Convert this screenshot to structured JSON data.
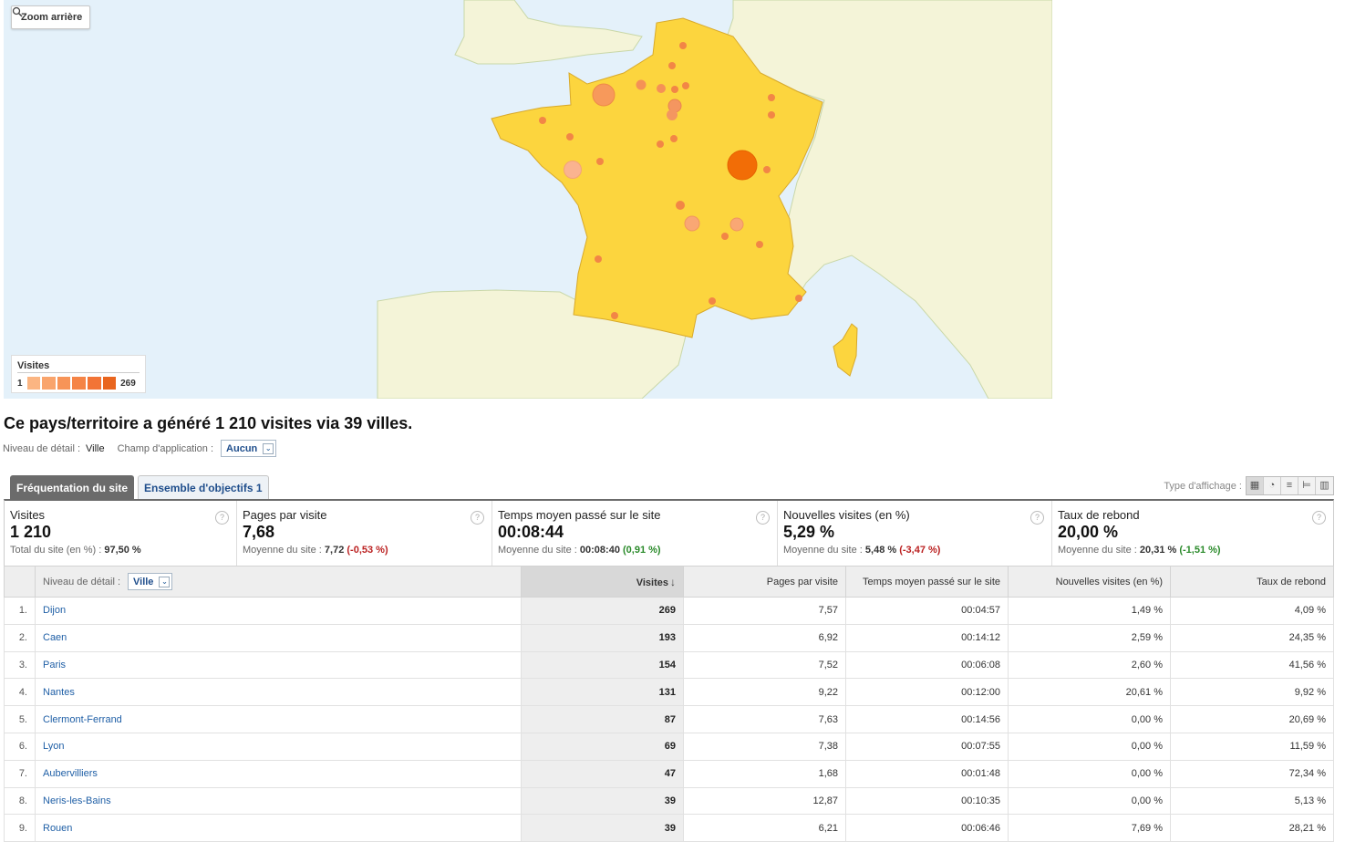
{
  "map": {
    "zoom_label": "Zoom arrière",
    "legend_title": "Visites",
    "legend_min": "1",
    "legend_max": "269",
    "legend_colors": [
      "#fbb582",
      "#f9a46c",
      "#f79458",
      "#f58446",
      "#f27436",
      "#e9651e"
    ]
  },
  "summary": {
    "headline": "Ce pays/territoire a généré 1 210 visites via 39 villes.",
    "detail_label": "Niveau de détail :",
    "detail_value": "Ville",
    "scope_label": "Champ d'application :",
    "scope_value": "Aucun"
  },
  "tabs": [
    {
      "label": "Fréquentation du site",
      "active": true
    },
    {
      "label": "Ensemble d'objectifs 1",
      "active": false
    }
  ],
  "view_type_label": "Type d'affichage :",
  "scorecards": [
    {
      "label": "Visites",
      "value": "1 210",
      "sub_prefix": "Total du site (en %) :",
      "sub_value": "97,50 %",
      "delta": ""
    },
    {
      "label": "Pages par visite",
      "value": "7,68",
      "sub_prefix": "Moyenne du site :",
      "sub_value": "7,72",
      "delta": "(-0,53 %)"
    },
    {
      "label": "Temps moyen passé sur le site",
      "value": "00:08:44",
      "sub_prefix": "Moyenne du site :",
      "sub_value": "00:08:40",
      "delta": "(0,91 %)"
    },
    {
      "label": "Nouvelles visites (en %)",
      "value": "5,29 %",
      "sub_prefix": "Moyenne du site :",
      "sub_value": "5,48 %",
      "delta": "(-3,47 %)"
    },
    {
      "label": "Taux de rebond",
      "value": "20,00 %",
      "sub_prefix": "Moyenne du site :",
      "sub_value": "20,31 %",
      "delta": "(-1,51 %)"
    }
  ],
  "table": {
    "detail_label": "Niveau de détail :",
    "detail_value": "Ville",
    "columns": [
      "Visites",
      "Pages par visite",
      "Temps moyen passé sur le site",
      "Nouvelles visites (en %)",
      "Taux de rebond"
    ],
    "rows": [
      {
        "idx": "1.",
        "city": "Dijon",
        "visits": "269",
        "ppv": "7,57",
        "time": "00:04:57",
        "new": "1,49 %",
        "bounce": "4,09 %"
      },
      {
        "idx": "2.",
        "city": "Caen",
        "visits": "193",
        "ppv": "6,92",
        "time": "00:14:12",
        "new": "2,59 %",
        "bounce": "24,35 %"
      },
      {
        "idx": "3.",
        "city": "Paris",
        "visits": "154",
        "ppv": "7,52",
        "time": "00:06:08",
        "new": "2,60 %",
        "bounce": "41,56 %"
      },
      {
        "idx": "4.",
        "city": "Nantes",
        "visits": "131",
        "ppv": "9,22",
        "time": "00:12:00",
        "new": "20,61 %",
        "bounce": "9,92 %"
      },
      {
        "idx": "5.",
        "city": "Clermont-Ferrand",
        "visits": "87",
        "ppv": "7,63",
        "time": "00:14:56",
        "new": "0,00 %",
        "bounce": "20,69 %"
      },
      {
        "idx": "6.",
        "city": "Lyon",
        "visits": "69",
        "ppv": "7,38",
        "time": "00:07:55",
        "new": "0,00 %",
        "bounce": "11,59 %"
      },
      {
        "idx": "7.",
        "city": "Aubervilliers",
        "visits": "47",
        "ppv": "1,68",
        "time": "00:01:48",
        "new": "0,00 %",
        "bounce": "72,34 %"
      },
      {
        "idx": "8.",
        "city": "Neris-les-Bains",
        "visits": "39",
        "ppv": "12,87",
        "time": "00:10:35",
        "new": "0,00 %",
        "bounce": "5,13 %"
      },
      {
        "idx": "9.",
        "city": "Rouen",
        "visits": "39",
        "ppv": "6,21",
        "time": "00:06:46",
        "new": "7,69 %",
        "bounce": "28,21 %"
      }
    ]
  }
}
